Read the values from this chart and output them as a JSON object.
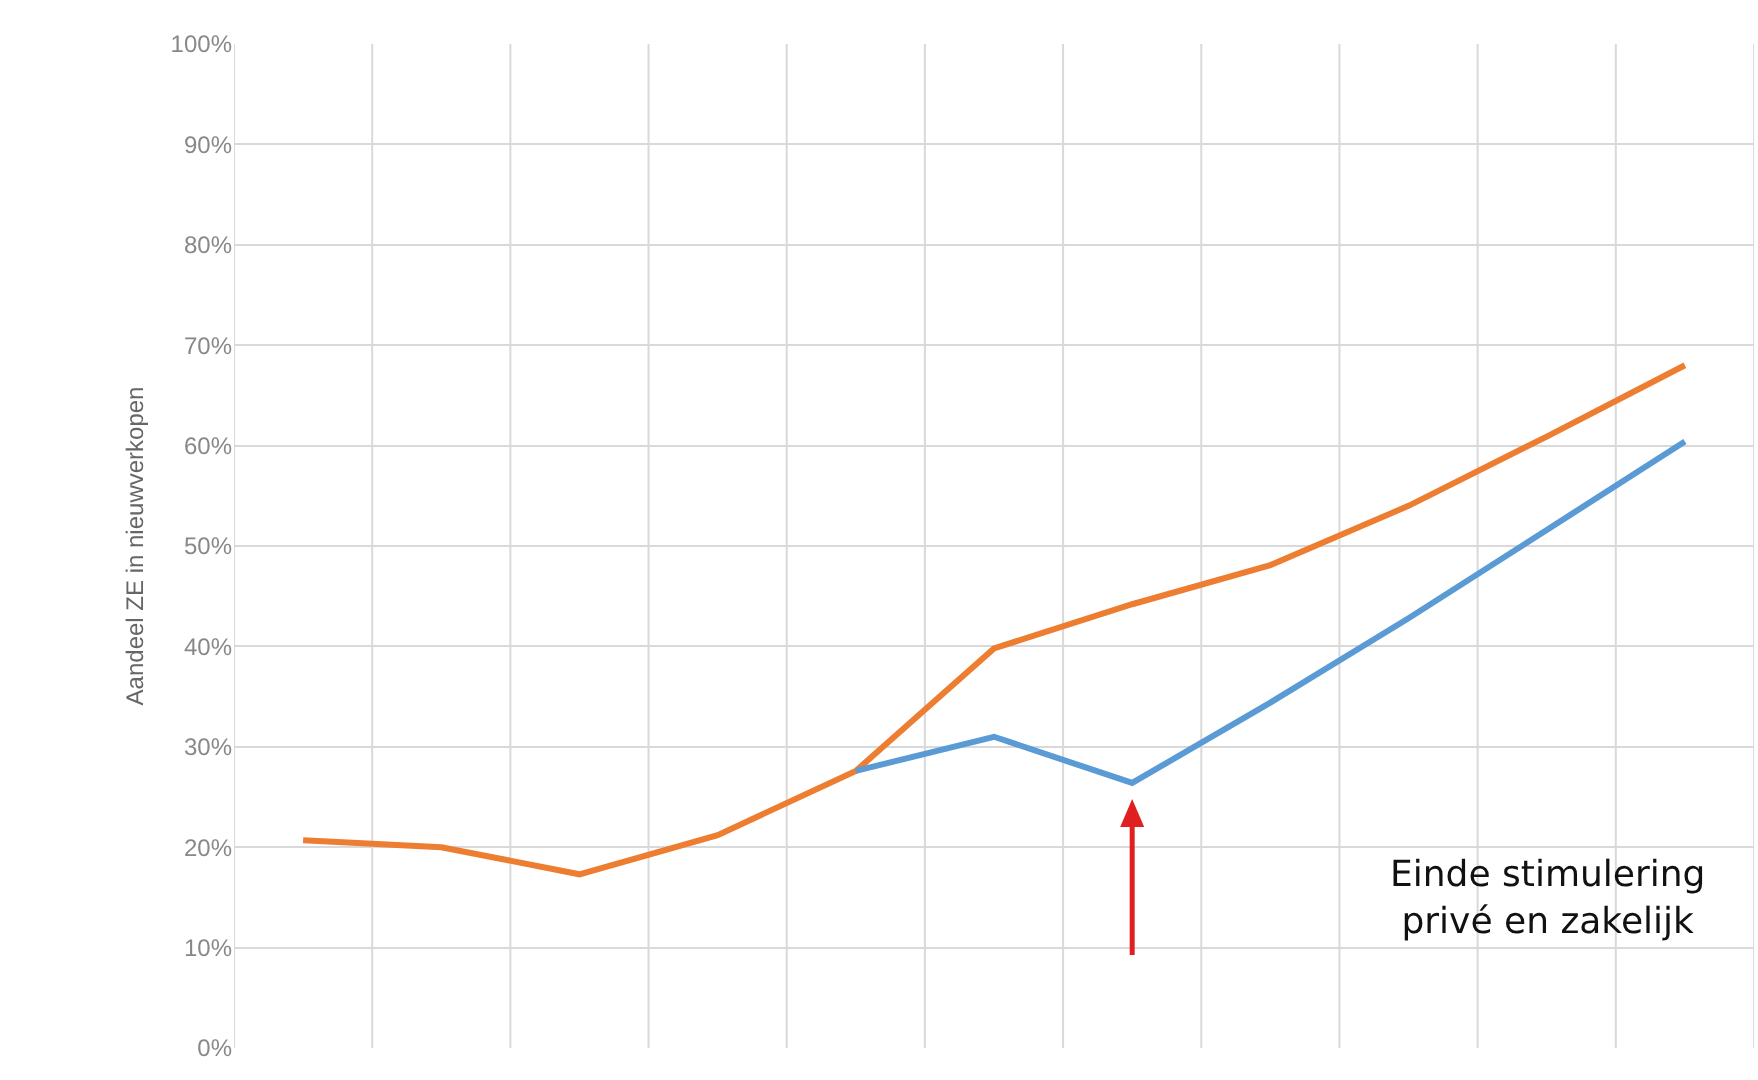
{
  "chart_data": {
    "type": "line",
    "ylabel": "Aandeel ZE in nieuwverkopen",
    "annotations": [
      "Einde stimulering\nprivé en zakelijk"
    ],
    "categories": [
      null,
      null,
      null,
      null,
      null,
      null,
      null,
      null,
      null,
      null,
      null
    ],
    "series": [
      {
        "color": "#ed7d31",
        "values": [
          20.7,
          20.0,
          17.3,
          21.2,
          27.6,
          39.8,
          44.2,
          48.1,
          54.0,
          60.9,
          68.0
        ]
      },
      {
        "color": "#5b9bd5",
        "values": [
          null,
          null,
          null,
          null,
          27.6,
          31.0,
          26.4,
          34.4,
          42.8,
          51.6,
          60.4
        ]
      }
    ],
    "ylim": [
      0,
      100
    ],
    "yticks": [
      {
        "value": 0,
        "label": "0%"
      },
      {
        "value": 10,
        "label": "10%"
      },
      {
        "value": 20,
        "label": "20%"
      },
      {
        "value": 30,
        "label": "30%"
      },
      {
        "value": 40,
        "label": "40%"
      },
      {
        "value": 50,
        "label": "50%"
      },
      {
        "value": 60,
        "label": "60%"
      },
      {
        "value": 70,
        "label": "70%"
      },
      {
        "value": 80,
        "label": "80%"
      },
      {
        "value": 90,
        "label": "90%"
      },
      {
        "value": 100,
        "label": "100%"
      }
    ],
    "grid": true,
    "tick_labels": "y",
    "marker": "none",
    "line_style": "solid"
  }
}
